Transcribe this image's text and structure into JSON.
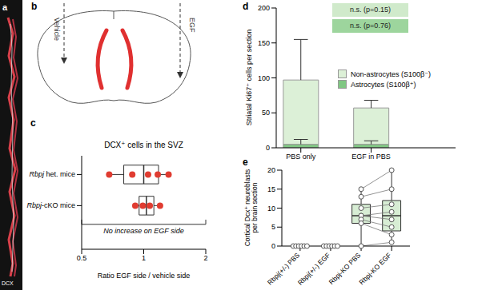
{
  "image_panel": {
    "label": "a",
    "stain": "DCX"
  },
  "diagram": {
    "label": "b",
    "left_arrow": "Vehicle",
    "right_arrow": "EGF"
  },
  "chart_data": [
    {
      "panel": "c",
      "type": "box",
      "orientation": "horizontal",
      "title": "DCX⁺ cells in the SVZ",
      "categories": [
        "Rbpj het. mice",
        "Rbpj-cKO mice"
      ],
      "values": [
        [
          0.68,
          0.88,
          1.05,
          1.17,
          1.32
        ],
        [
          0.91,
          0.99,
          1.07,
          1.2
        ]
      ],
      "box": [
        {
          "min": 0.68,
          "q1": 0.8,
          "median": 1.0,
          "q3": 1.18,
          "max": 1.32
        },
        {
          "min": 0.91,
          "q1": 0.95,
          "median": 1.03,
          "q3": 1.12,
          "max": 1.2
        }
      ],
      "xlabel": "Ratio EGF side / vehicle side",
      "xlim": [
        0.5,
        2
      ],
      "xticks": [
        0.5,
        1,
        2
      ],
      "log": "x",
      "annotation": "No increase on EGF side",
      "color": "#e03c31",
      "marker": "filled"
    },
    {
      "panel": "d",
      "type": "bar",
      "stacked": true,
      "categories": [
        "PBS only",
        "EGF in PBS"
      ],
      "series": [
        {
          "name": "Astrocytes (S100β⁺)",
          "color": "#80c783",
          "values": [
            5,
            5
          ],
          "error": [
            7,
            5
          ]
        },
        {
          "name": "Non-astrocytes (S100β⁻)",
          "color": "#dcf0d7",
          "values": [
            92,
            52
          ],
          "error": [
            58,
            11
          ]
        }
      ],
      "ylabel": "Striatal Ki67⁺ cells per section",
      "ylim": [
        0,
        200
      ],
      "yticks": [
        0,
        50,
        100,
        150,
        200
      ],
      "legend": "upper right",
      "annotations": [
        {
          "text": "n.s. (p=0.15)",
          "color": "#d0eacb"
        },
        {
          "text": "n.s. (p=0.76)",
          "color": "#9dd59d"
        }
      ]
    },
    {
      "panel": "e",
      "type": "box",
      "categories": [
        "Rbpj(+/-) PBS",
        "Rbpj(+/-) EGF",
        "Rbpj-KO PBS",
        "Rbpj-KO EGF"
      ],
      "values": [
        [
          0,
          0,
          0,
          0,
          0,
          0
        ],
        [
          0,
          0,
          0,
          0,
          0,
          0
        ],
        [
          15,
          13,
          10,
          8,
          8,
          7,
          6,
          0
        ],
        [
          20,
          15,
          11,
          9,
          7,
          5,
          3,
          1
        ]
      ],
      "box": [
        {
          "min": 0,
          "q1": 0,
          "median": 0,
          "q3": 0,
          "max": 0
        },
        {
          "min": 0,
          "q1": 0,
          "median": 0,
          "q3": 0,
          "max": 0
        },
        {
          "min": 0,
          "q1": 6,
          "median": 8,
          "q3": 11,
          "max": 15
        },
        {
          "min": 1,
          "q1": 4,
          "median": 8,
          "q3": 12,
          "max": 20
        }
      ],
      "paired": [
        [
          2,
          3
        ]
      ],
      "ylabel": "Cortical Dcx⁺ neuroblasts per brain section",
      "ylim": [
        0,
        20
      ],
      "yticks": [
        0,
        5,
        10,
        15,
        20
      ],
      "color": "#d3ebcf",
      "marker": "open"
    }
  ]
}
